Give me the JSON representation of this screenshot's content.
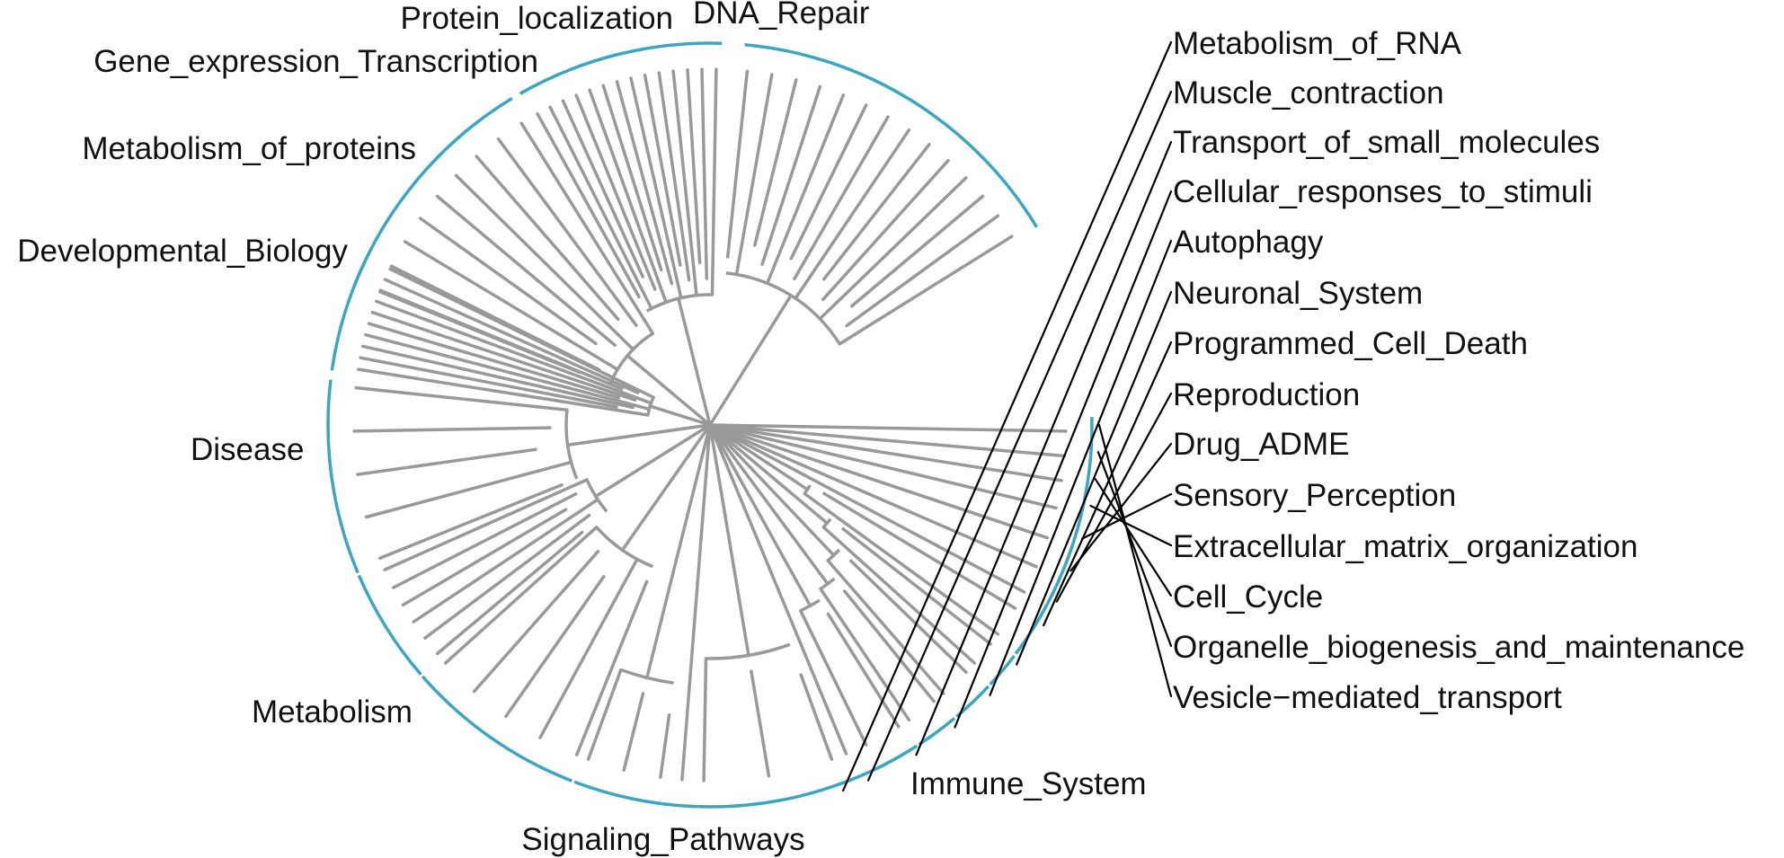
{
  "colors": {
    "branch": "#999999",
    "arc": "#3aa6c3",
    "leader": "#000000",
    "text": "#111111"
  },
  "categories": [
    {
      "id": "disease",
      "label": "Disease",
      "leaves": 10
    },
    {
      "id": "developmental-biology",
      "label": "Developmental_Biology",
      "leaves": 5
    },
    {
      "id": "metabolism-of-proteins",
      "label": "Metabolism_of_proteins",
      "leaves": 6
    },
    {
      "id": "gene-expression-transcription",
      "label": "Gene_expression_Transcription",
      "leaves": 5
    },
    {
      "id": "protein-localization",
      "label": "Protein_localization",
      "leaves": 3
    },
    {
      "id": "dna-repair",
      "label": "DNA_Repair",
      "leaves": 1
    },
    {
      "id": "metabolism-of-rna",
      "label": "Metabolism_of_RNA",
      "leaves": 3
    },
    {
      "id": "muscle-contraction",
      "label": "Muscle_contraction",
      "leaves": 1
    },
    {
      "id": "transport-of-small-molecules",
      "label": "Transport_of_small_molecules",
      "leaves": 2
    },
    {
      "id": "cellular-responses-to-stimuli",
      "label": "Cellular_responses_to_stimuli",
      "leaves": 2
    },
    {
      "id": "autophagy",
      "label": "Autophagy",
      "leaves": 2
    },
    {
      "id": "neuronal-system",
      "label": "Neuronal_System",
      "leaves": 2
    },
    {
      "id": "programmed-cell-death",
      "label": "Programmed_Cell_Death",
      "leaves": 2
    },
    {
      "id": "reproduction",
      "label": "Reproduction",
      "leaves": 1
    },
    {
      "id": "drug-adme",
      "label": "Drug_ADME",
      "leaves": 1
    },
    {
      "id": "sensory-perception",
      "label": "Sensory_Perception",
      "leaves": 1
    },
    {
      "id": "extracellular-matrix-organization",
      "label": "Extracellular_matrix_organization",
      "leaves": 1
    },
    {
      "id": "cell-cycle",
      "label": "Cell_Cycle",
      "leaves": 1
    },
    {
      "id": "organelle-biogenesis-and-maintenance",
      "label": "Organelle_biogenesis_and_maintenance",
      "leaves": 1
    },
    {
      "id": "vesicle-mediated-transport",
      "label": "Vesicle−mediated_transport",
      "leaves": 1
    },
    {
      "id": "immune-system",
      "label": "Immune_System",
      "leaves": 14
    },
    {
      "id": "signaling-pathways",
      "label": "Signaling_Pathways",
      "leaves": 14
    },
    {
      "id": "metabolism",
      "label": "Metabolism",
      "leaves": 9
    }
  ]
}
